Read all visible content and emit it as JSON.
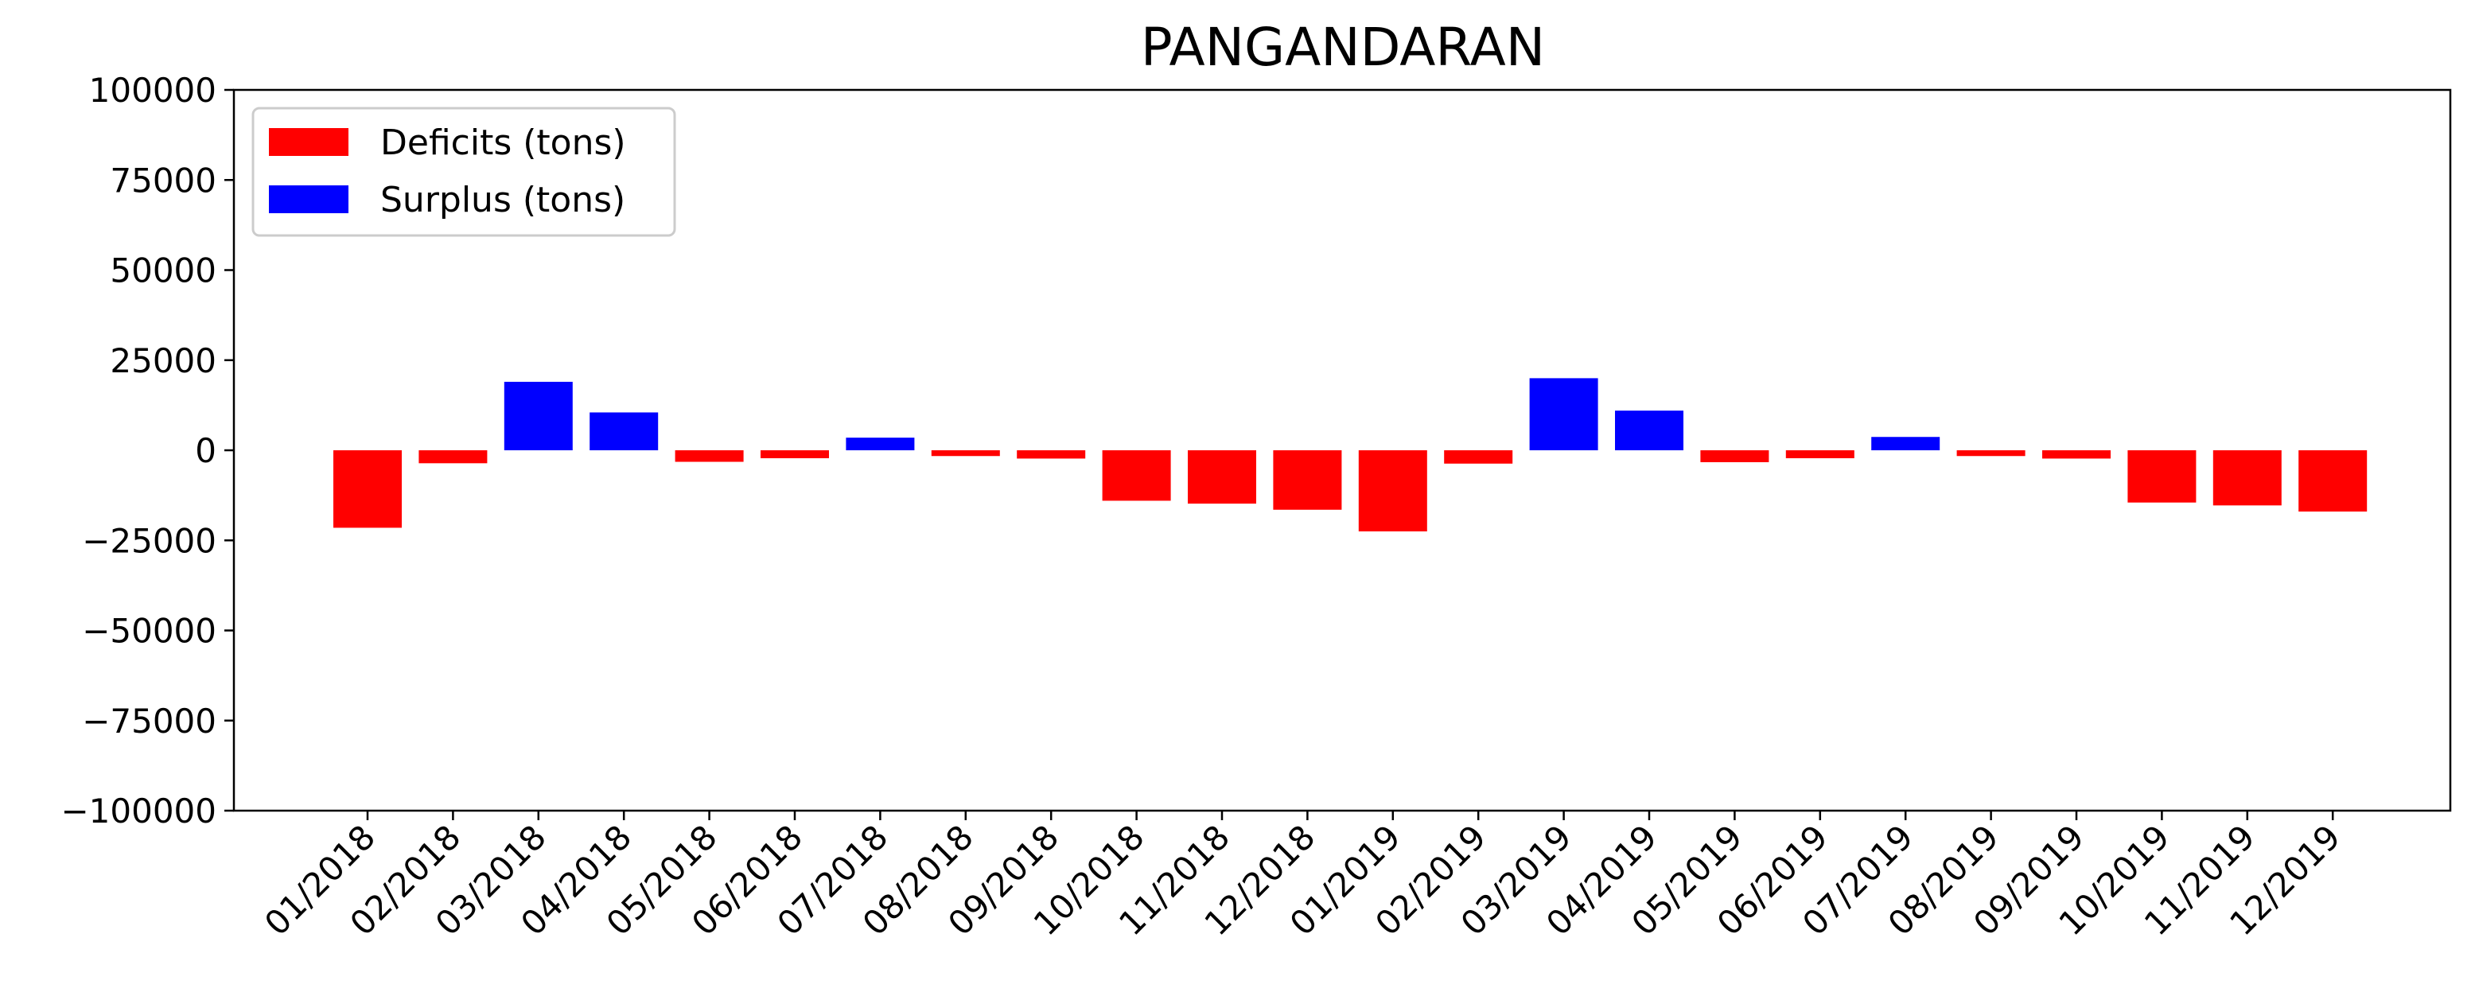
{
  "chart_data": {
    "type": "bar",
    "title": "PANGANDARAN",
    "xlabel": "",
    "ylabel": "",
    "ylim": [
      -100000,
      100000
    ],
    "yticks": [
      100000,
      75000,
      50000,
      25000,
      0,
      -25000,
      -50000,
      -75000,
      -100000
    ],
    "ytick_labels": [
      "100000",
      "75000",
      "50000",
      "25000",
      "0",
      "−25000",
      "−50000",
      "−75000",
      "−100000"
    ],
    "grid": false,
    "legend_position": "top-left",
    "categories": [
      "01/2018",
      "02/2018",
      "03/2018",
      "04/2018",
      "05/2018",
      "06/2018",
      "07/2018",
      "08/2018",
      "09/2018",
      "10/2018",
      "11/2018",
      "12/2018",
      "01/2019",
      "02/2019",
      "03/2019",
      "04/2019",
      "05/2019",
      "06/2019",
      "07/2019",
      "08/2019",
      "09/2019",
      "10/2019",
      "11/2019",
      "12/2019"
    ],
    "series": [
      {
        "name": "Deficits (tons)",
        "color": "#ff0000",
        "values": [
          -21500,
          -3600,
          null,
          null,
          -3200,
          -2200,
          null,
          -1600,
          -2300,
          -14000,
          -14800,
          -16500,
          -22500,
          -3700,
          null,
          null,
          -3300,
          -2200,
          null,
          -1600,
          -2300,
          -14500,
          -15300,
          -17000
        ]
      },
      {
        "name": "Surplus (tons)",
        "color": "#0000ff",
        "values": [
          null,
          null,
          19000,
          10500,
          null,
          null,
          3500,
          null,
          null,
          null,
          null,
          null,
          null,
          null,
          20000,
          11000,
          null,
          null,
          3700,
          null,
          null,
          null,
          null,
          null
        ]
      }
    ]
  }
}
